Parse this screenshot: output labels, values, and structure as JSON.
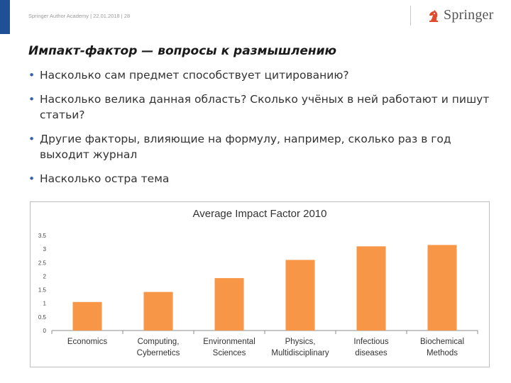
{
  "header": {
    "meta": "Springer Author Academy | 22.01.2018 | 28",
    "logo_text": "Springer",
    "logo_icon": "knight-chess-piece-icon",
    "brand_color": "#1f4f96"
  },
  "slide": {
    "title": "Импакт-фактор — вопросы к размышлению",
    "bullets": [
      "Насколько сам предмет способствует цитированию?",
      "Насколько велика данная область? Сколько учёных в ней работают и пишут статьи?",
      "Другие факторы, влияющие на формулу, например, сколько раз в год выходит журнал",
      "Насколько остра тема"
    ]
  },
  "chart_data": {
    "type": "bar",
    "title": "Average Impact Factor 2010",
    "categories": [
      [
        "Economics"
      ],
      [
        "Computing,",
        "Cybernetics"
      ],
      [
        "Environmental",
        "Sciences"
      ],
      [
        "Physics,",
        "Multidisciplinary"
      ],
      [
        "Infectious",
        "diseases"
      ],
      [
        "Biochemical",
        "Methods"
      ]
    ],
    "values": [
      1.05,
      1.42,
      1.93,
      2.6,
      3.1,
      3.15
    ],
    "ylim": [
      0,
      3.5
    ],
    "yticks": [
      "0",
      "0.5",
      "1",
      "1.5",
      "2",
      "2.5",
      "3",
      "3.5"
    ],
    "bar_color": "#f79646",
    "grid": false,
    "legend": "none"
  }
}
